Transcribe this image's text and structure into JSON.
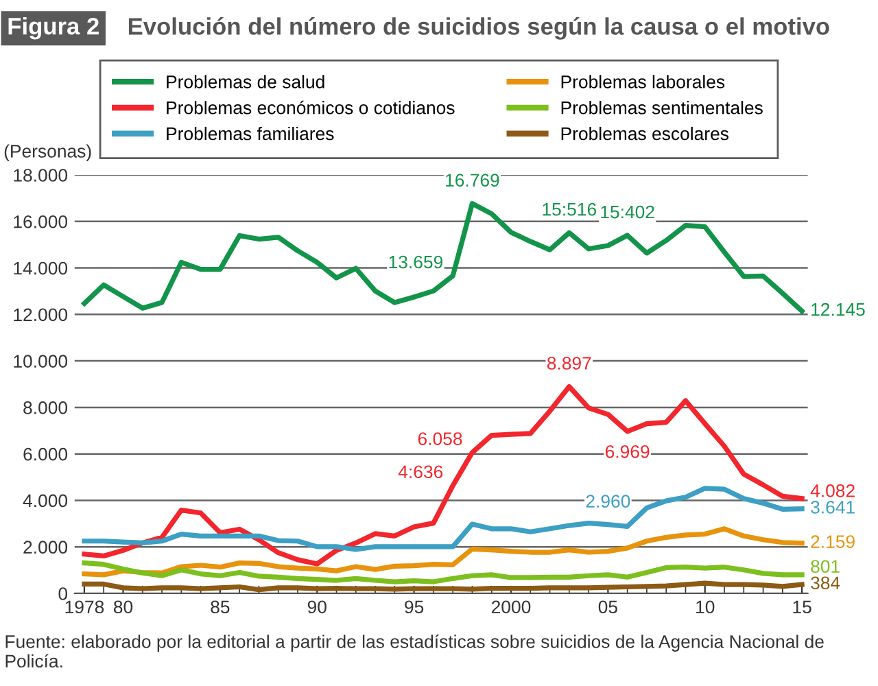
{
  "chart_data": {
    "type": "line",
    "title": "Evolución del número de suicidios según la causa o el motivo",
    "ylabel": "(Personas)",
    "annotations": [
      "Figura 2",
      "Fuente: elaborado por la editorial a partir de las estadísticas sobre suicidios de la Agencia Nacional de Policía."
    ],
    "x": [
      1978,
      1979,
      1980,
      1981,
      1982,
      1983,
      1984,
      1985,
      1986,
      1987,
      1988,
      1989,
      1990,
      1991,
      1992,
      1993,
      1994,
      1995,
      1996,
      1997,
      1998,
      1999,
      2000,
      2001,
      2002,
      2003,
      2004,
      2005,
      2006,
      2007,
      2008,
      2009,
      2010,
      2011,
      2012,
      2013,
      2014,
      2015
    ],
    "xlim": [
      1977.5,
      2015.3
    ],
    "xticks": [
      {
        "value": 1978,
        "label": "1978"
      },
      {
        "value": 1980,
        "label": "80"
      },
      {
        "value": 1985,
        "label": "85"
      },
      {
        "value": 1990,
        "label": "90"
      },
      {
        "value": 1995,
        "label": "95"
      },
      {
        "value": 2000,
        "label": "2000"
      },
      {
        "value": 2005,
        "label": "05"
      },
      {
        "value": 2010,
        "label": "10"
      },
      {
        "value": 2015,
        "label": "15"
      }
    ],
    "ylim": [
      0,
      18000
    ],
    "yticks": [
      {
        "value": 0,
        "label": "0"
      },
      {
        "value": 2000,
        "label": "2.000"
      },
      {
        "value": 4000,
        "label": "4.000"
      },
      {
        "value": 6000,
        "label": "6.000"
      },
      {
        "value": 8000,
        "label": "8.000"
      },
      {
        "value": 10000,
        "label": "10.000"
      },
      {
        "value": 12000,
        "label": "12.000"
      },
      {
        "value": 14000,
        "label": "14.000"
      },
      {
        "value": 16000,
        "label": "16.000"
      },
      {
        "value": 18000,
        "label": "18.000"
      }
    ],
    "grid": "y",
    "legend": "top",
    "marker": "none",
    "line_style": "solid",
    "series": [
      {
        "name": "Problemas de salud",
        "color": "#12944a",
        "values": [
          12470,
          13270,
          12770,
          12270,
          12510,
          14240,
          13940,
          13940,
          15390,
          15240,
          15320,
          14740,
          14240,
          13570,
          13980,
          13010,
          12510,
          12750,
          13010,
          13659,
          16769,
          16330,
          15530,
          15140,
          14780,
          15516,
          14820,
          14960,
          15402,
          14640,
          15180,
          15830,
          15770,
          14680,
          13630,
          13650,
          12910,
          12145
        ],
        "value_labels": [
          null,
          null,
          null,
          null,
          null,
          null,
          null,
          null,
          null,
          null,
          null,
          null,
          null,
          null,
          null,
          null,
          null,
          null,
          null,
          "13.659",
          "16.769",
          null,
          null,
          null,
          null,
          "15:516",
          null,
          null,
          "15:402",
          null,
          null,
          null,
          null,
          null,
          null,
          null,
          null,
          "12.145"
        ]
      },
      {
        "name": "Problemas laborales",
        "color": "#e8930e",
        "values": [
          840,
          800,
          970,
          900,
          880,
          1150,
          1210,
          1130,
          1310,
          1290,
          1150,
          1090,
          1050,
          970,
          1150,
          1030,
          1170,
          1190,
          1250,
          1230,
          1910,
          1870,
          1810,
          1770,
          1770,
          1870,
          1770,
          1810,
          1950,
          2250,
          2410,
          2510,
          2550,
          2780,
          2470,
          2310,
          2190,
          2159
        ],
        "value_labels": [
          null,
          null,
          null,
          null,
          null,
          null,
          null,
          null,
          null,
          null,
          null,
          null,
          null,
          null,
          null,
          null,
          null,
          null,
          null,
          null,
          null,
          null,
          null,
          null,
          null,
          null,
          null,
          null,
          null,
          null,
          null,
          null,
          null,
          null,
          null,
          null,
          null,
          "2.159"
        ]
      },
      {
        "name": "Problemas económicos o cotidianos",
        "color": "#f2262c",
        "values": [
          1690,
          1610,
          1850,
          2170,
          2410,
          3580,
          3460,
          2610,
          2760,
          2310,
          1750,
          1450,
          1270,
          1850,
          2170,
          2570,
          2470,
          2860,
          3020,
          4636,
          6058,
          6800,
          6840,
          6880,
          7840,
          8897,
          7980,
          7700,
          6969,
          7300,
          7360,
          8290,
          7300,
          6330,
          5130,
          4670,
          4180,
          4082
        ],
        "value_labels": [
          null,
          null,
          null,
          null,
          null,
          null,
          null,
          null,
          null,
          null,
          null,
          null,
          null,
          null,
          null,
          null,
          null,
          null,
          null,
          "4:636",
          "6.058",
          null,
          null,
          null,
          null,
          "8.897",
          null,
          null,
          "6.969",
          null,
          null,
          null,
          null,
          null,
          null,
          null,
          null,
          "4.082"
        ]
      },
      {
        "name": "Problemas sentimentales",
        "color": "#7cbf1e",
        "values": [
          1310,
          1250,
          1050,
          880,
          760,
          1010,
          840,
          760,
          900,
          740,
          700,
          640,
          600,
          560,
          640,
          560,
          500,
          540,
          500,
          640,
          760,
          800,
          680,
          680,
          700,
          700,
          760,
          800,
          700,
          900,
          1110,
          1130,
          1090,
          1130,
          1010,
          860,
          800,
          801
        ],
        "value_labels": [
          null,
          null,
          null,
          null,
          null,
          null,
          null,
          null,
          null,
          null,
          null,
          null,
          null,
          null,
          null,
          null,
          null,
          null,
          null,
          null,
          null,
          null,
          null,
          null,
          null,
          null,
          null,
          null,
          null,
          null,
          null,
          null,
          null,
          null,
          null,
          null,
          null,
          "801"
        ]
      },
      {
        "name": "Problemas familiares",
        "color": "#3d9fc4",
        "values": [
          2250,
          2250,
          2210,
          2170,
          2250,
          2550,
          2470,
          2470,
          2470,
          2470,
          2270,
          2250,
          2010,
          2010,
          1890,
          2010,
          2010,
          2010,
          2010,
          2010,
          2980,
          2780,
          2780,
          2650,
          2780,
          2920,
          3020,
          2960,
          2880,
          3680,
          3980,
          4140,
          4520,
          4480,
          4080,
          3880,
          3620,
          3641
        ],
        "value_labels": [
          null,
          null,
          null,
          null,
          null,
          null,
          null,
          null,
          null,
          null,
          null,
          null,
          null,
          null,
          null,
          null,
          null,
          null,
          null,
          null,
          null,
          null,
          null,
          null,
          null,
          null,
          null,
          "2.960",
          null,
          null,
          null,
          null,
          null,
          null,
          null,
          null,
          null,
          "3.641"
        ]
      },
      {
        "name": "Problemas escolares",
        "color": "#8c5a14",
        "values": [
          400,
          400,
          240,
          200,
          240,
          240,
          200,
          240,
          280,
          160,
          240,
          240,
          200,
          220,
          200,
          200,
          180,
          200,
          200,
          200,
          180,
          220,
          220,
          220,
          240,
          240,
          240,
          260,
          280,
          300,
          320,
          380,
          440,
          380,
          380,
          360,
          300,
          384
        ],
        "value_labels": [
          null,
          null,
          null,
          null,
          null,
          null,
          null,
          null,
          null,
          null,
          null,
          null,
          null,
          null,
          null,
          null,
          null,
          null,
          null,
          null,
          null,
          null,
          null,
          null,
          null,
          null,
          null,
          null,
          null,
          null,
          null,
          null,
          null,
          null,
          null,
          null,
          null,
          "384"
        ]
      }
    ]
  }
}
